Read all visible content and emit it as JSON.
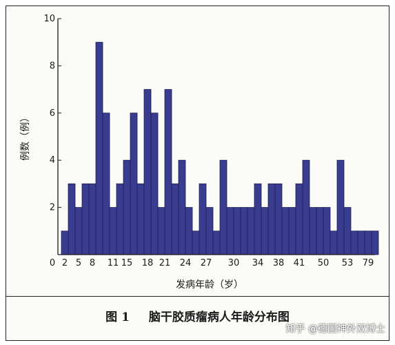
{
  "caption": {
    "number": "图 1",
    "text": "脑干胶质瘤病人年龄分布图"
  },
  "watermark": "知乎 @德国神外双博士",
  "colors": {
    "bar": "#3a3d8f",
    "bar_edge": "#1b1d55",
    "axis": "#1a1a1a"
  },
  "chart_data": {
    "type": "bar",
    "title": "",
    "xlabel": "发病年龄（岁）",
    "ylabel": "例数（例）",
    "ylim": [
      0,
      10
    ],
    "yticks": [
      0,
      2,
      4,
      6,
      8,
      10
    ],
    "grid": false,
    "legend": "none",
    "values": [
      1,
      3,
      2,
      3,
      3,
      9,
      6,
      2,
      3,
      4,
      6,
      3,
      7,
      6,
      2,
      7,
      3,
      4,
      2,
      1,
      3,
      2,
      1,
      4,
      2,
      2,
      2,
      2,
      3,
      2,
      3,
      3,
      2,
      2,
      3,
      4,
      2,
      2,
      2,
      1,
      4,
      2,
      1,
      1,
      1,
      1
    ],
    "x_tick_labels": [
      {
        "label": "0",
        "pos": 0
      },
      {
        "label": "2",
        "pos": 0.5
      },
      {
        "label": "5",
        "pos": 2.5
      },
      {
        "label": "8",
        "pos": 4.5
      },
      {
        "label": "11",
        "pos": 7.5
      },
      {
        "label": "15",
        "pos": 9.5
      },
      {
        "label": "18",
        "pos": 12.5
      },
      {
        "label": "21",
        "pos": 15
      },
      {
        "label": "24",
        "pos": 18
      },
      {
        "label": "27",
        "pos": 21
      },
      {
        "label": "30",
        "pos": 25
      },
      {
        "label": "34",
        "pos": 28.5
      },
      {
        "label": "38",
        "pos": 31.5
      },
      {
        "label": "41",
        "pos": 34.5
      },
      {
        "label": "50",
        "pos": 38
      },
      {
        "label": "53",
        "pos": 41.5
      },
      {
        "label": "79",
        "pos": 44.5
      }
    ]
  }
}
